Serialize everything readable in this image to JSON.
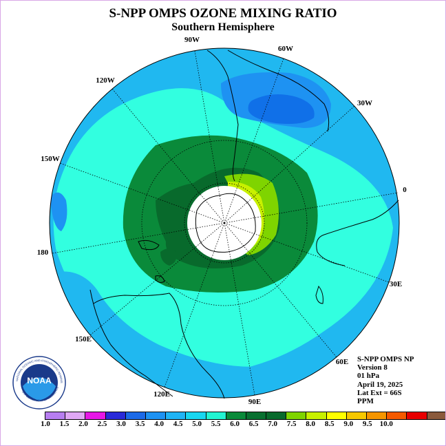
{
  "title": "S-NPP OMPS OZONE MIXING RATIO",
  "subtitle": "Southern Hemisphere",
  "longitude_labels": [
    "90W",
    "60W",
    "30W",
    "0",
    "30E",
    "60E",
    "90E",
    "120E",
    "150E",
    "180",
    "150W",
    "120W"
  ],
  "info": {
    "instrument": "S-NPP OMPS NP",
    "version": "Version 8",
    "level": "01 hPa",
    "date": "April 19, 2025",
    "lat_ext": "Lat Ext = 66S",
    "units": "PPM"
  },
  "logo": {
    "text": "NOAA",
    "ring_text": "NATIONAL OCEANIC AND ATMOSPHERIC ADMINISTRATION",
    "ring_text_bottom": "U.S. DEPARTMENT OF COMMERCE"
  },
  "colorbar": {
    "ticks": [
      "1.0",
      "1.5",
      "2.0",
      "2.5",
      "3.0",
      "3.5",
      "4.0",
      "4.5",
      "5.0",
      "5.5",
      "6.0",
      "6.5",
      "7.0",
      "7.5",
      "8.0",
      "8.5",
      "9.0",
      "9.5",
      "10.0"
    ],
    "colors": [
      "#b77ef0",
      "#e0a8f5",
      "#e617e6",
      "#2a2ad8",
      "#1c6ae8",
      "#1e92f2",
      "#20b4f5",
      "#18d7f0",
      "#22f5d2",
      "#0a8a3a",
      "#087030",
      "#086a2c",
      "#7fd400",
      "#c8f000",
      "#ffff00",
      "#f7c800",
      "#f59500",
      "#f55a00",
      "#e80000",
      "#8a5a3c"
    ]
  },
  "colors": {
    "cyan_light": "#32ffe0",
    "cyan": "#20b8f0",
    "blue": "#1a8ef0",
    "dark_blue": "#1070e8",
    "green": "#0a8a3a",
    "dark_green": "#086a2c",
    "yellow_green": "#c8f000",
    "lime": "#7fd400"
  }
}
